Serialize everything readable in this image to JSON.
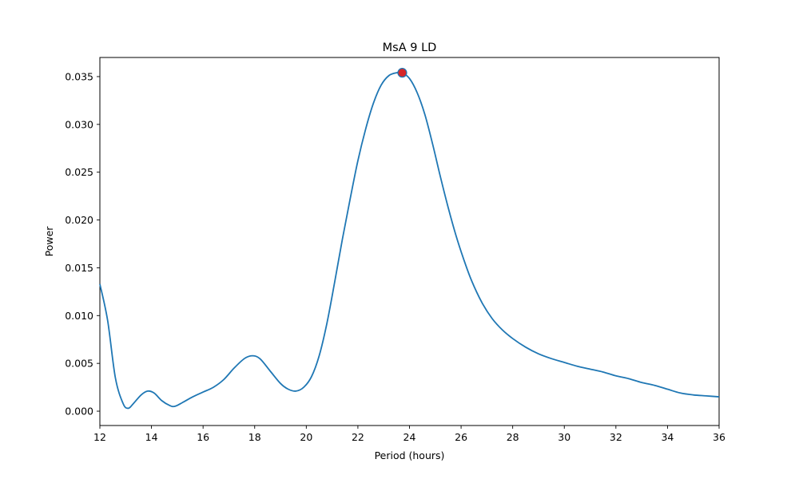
{
  "chart_data": {
    "type": "line",
    "title": "MsA 9 LD",
    "xlabel": "Period (hours)",
    "ylabel": "Power",
    "xlim": [
      12,
      36
    ],
    "ylim": [
      -0.0015,
      0.037
    ],
    "xticks": [
      12,
      14,
      16,
      18,
      20,
      22,
      24,
      26,
      28,
      30,
      32,
      34,
      36
    ],
    "yticks": [
      0.0,
      0.005,
      0.01,
      0.015,
      0.02,
      0.025,
      0.03,
      0.035
    ],
    "ytick_labels": [
      "0.000",
      "0.005",
      "0.010",
      "0.015",
      "0.020",
      "0.025",
      "0.030",
      "0.035"
    ],
    "grid": false,
    "line_color": "#1f77b4",
    "marker_color": "#d62728",
    "series": [
      {
        "x": [
          12.0,
          12.3,
          12.6,
          12.9,
          13.1,
          13.3,
          13.6,
          13.85,
          14.1,
          14.4,
          14.7,
          14.9,
          15.2,
          15.6,
          16.0,
          16.4,
          16.8,
          17.2,
          17.6,
          17.9,
          18.2,
          18.6,
          19.0,
          19.3,
          19.6,
          19.9,
          20.2,
          20.5,
          20.8,
          21.1,
          21.4,
          21.7,
          22.0,
          22.3,
          22.6,
          22.9,
          23.2,
          23.5,
          23.72,
          24.0,
          24.3,
          24.6,
          24.9,
          25.2,
          25.5,
          25.8,
          26.1,
          26.4,
          26.8,
          27.2,
          27.6,
          28.0,
          28.5,
          29.0,
          29.5,
          30.0,
          30.5,
          31.0,
          31.5,
          32.0,
          32.5,
          33.0,
          33.5,
          34.0,
          34.5,
          35.0,
          35.5,
          36.0
        ],
        "y": [
          0.0133,
          0.0095,
          0.0035,
          0.0008,
          0.0003,
          0.0008,
          0.0017,
          0.0021,
          0.0019,
          0.0011,
          0.0006,
          0.0005,
          0.0009,
          0.0015,
          0.002,
          0.0025,
          0.0033,
          0.0045,
          0.0055,
          0.0058,
          0.0055,
          0.0042,
          0.0029,
          0.0023,
          0.0021,
          0.0025,
          0.0036,
          0.0058,
          0.0092,
          0.0135,
          0.018,
          0.0222,
          0.0262,
          0.0295,
          0.0322,
          0.0341,
          0.0351,
          0.0354,
          0.0354,
          0.0348,
          0.0333,
          0.031,
          0.0279,
          0.0245,
          0.0213,
          0.0184,
          0.0159,
          0.0137,
          0.0114,
          0.0097,
          0.0085,
          0.0076,
          0.0067,
          0.006,
          0.0055,
          0.0051,
          0.0047,
          0.0044,
          0.0041,
          0.0037,
          0.0034,
          0.003,
          0.0027,
          0.0023,
          0.0019,
          0.0017,
          0.0016,
          0.0015
        ]
      }
    ],
    "peak": {
      "x": 23.72,
      "y": 0.0354
    }
  }
}
